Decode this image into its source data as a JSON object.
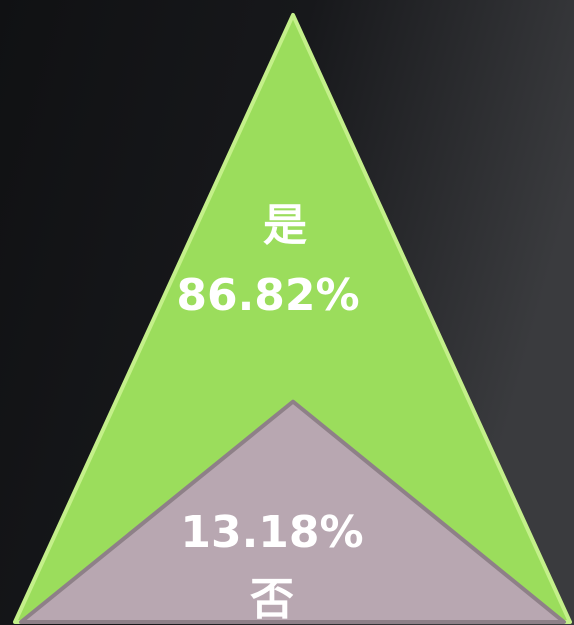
{
  "chart_data": {
    "type": "triangle",
    "categories": [
      "是",
      "否"
    ],
    "values": [
      86.82,
      13.18
    ],
    "value_labels": [
      "86.82%",
      "13.18%"
    ],
    "colors": [
      "#9bdd5c",
      "#b8a7b1"
    ]
  }
}
